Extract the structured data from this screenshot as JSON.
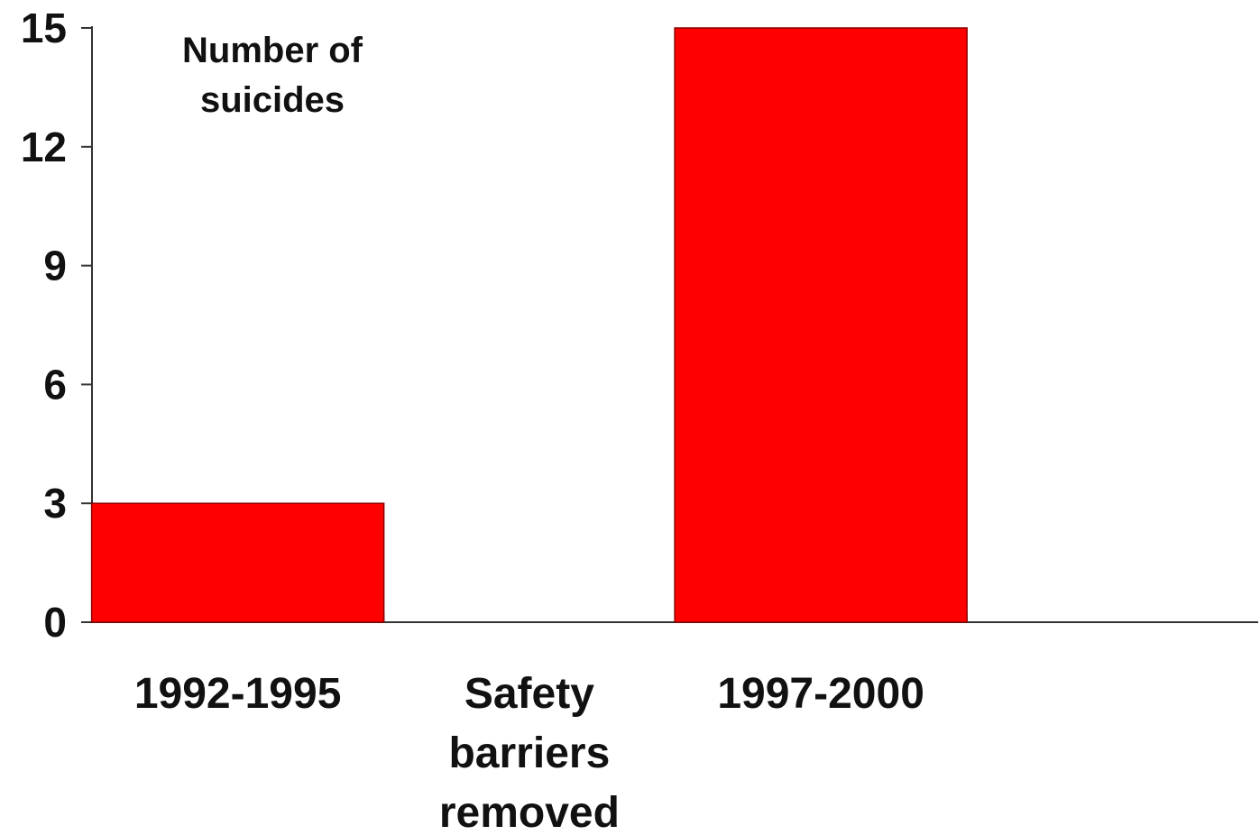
{
  "chart_data": {
    "type": "bar",
    "title": "",
    "ylabel_lines": [
      "Number of",
      "suicides"
    ],
    "xlabel": "",
    "categories": [
      "1992-1995",
      "Safety barriers removed",
      "1997-2000"
    ],
    "category_label_lines": [
      [
        "1992-1995"
      ],
      [
        "Safety",
        "barriers",
        "removed"
      ],
      [
        "1997-2000"
      ]
    ],
    "values": [
      3,
      null,
      15
    ],
    "ylim": [
      0,
      15
    ],
    "yticks": [
      0,
      3,
      6,
      9,
      12,
      15
    ],
    "bar_color": "#ff0000",
    "grid": false,
    "legend": "none"
  }
}
